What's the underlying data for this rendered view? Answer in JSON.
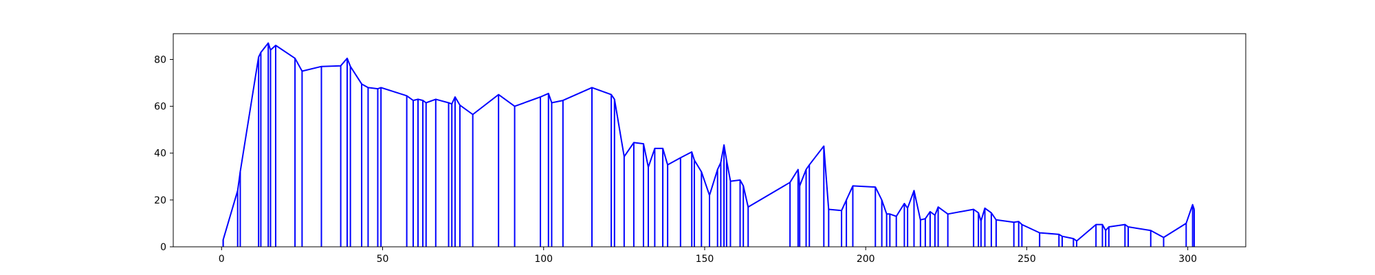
{
  "chart_data": {
    "type": "line",
    "title": "",
    "xlabel": "",
    "ylabel": "",
    "xlim": [
      -15,
      318
    ],
    "ylim": [
      0,
      91
    ],
    "xticks": [
      0,
      50,
      100,
      150,
      200,
      250,
      300
    ],
    "yticks": [
      0,
      20,
      40,
      60,
      80
    ],
    "grid": false,
    "legend": "none",
    "line_color": "#0000ff",
    "style": "each data point has a vertical stem from y=0 up to its value; consecutive points are joined by a line",
    "series": [
      {
        "points": [
          [
            0.5,
            0
          ],
          [
            0.5,
            3
          ],
          [
            5,
            24
          ],
          [
            5.8,
            32
          ],
          [
            11.5,
            81
          ],
          [
            12.2,
            83
          ],
          [
            14.5,
            87
          ],
          [
            15.2,
            84
          ],
          [
            16.8,
            86
          ],
          [
            22.8,
            80.5
          ],
          [
            25,
            75
          ],
          [
            31,
            77
          ],
          [
            37,
            77.3
          ],
          [
            39,
            80.5
          ],
          [
            40,
            77
          ],
          [
            43.5,
            69.5
          ],
          [
            45.5,
            68
          ],
          [
            48.5,
            67.5
          ],
          [
            49.5,
            68
          ],
          [
            57.5,
            64.5
          ],
          [
            59.5,
            62.5
          ],
          [
            61,
            63
          ],
          [
            62.5,
            62.5
          ],
          [
            63.5,
            61.5
          ],
          [
            66.5,
            63
          ],
          [
            70.5,
            61.5
          ],
          [
            71.5,
            61
          ],
          [
            72.5,
            64
          ],
          [
            74,
            60.5
          ],
          [
            78,
            56.5
          ],
          [
            86,
            65
          ],
          [
            91,
            60
          ],
          [
            99,
            64
          ],
          [
            101.5,
            65.5
          ],
          [
            102.5,
            61.5
          ],
          [
            106,
            62.5
          ],
          [
            115,
            68
          ],
          [
            121,
            65
          ],
          [
            122,
            63
          ],
          [
            125,
            38.5
          ],
          [
            128,
            44.5
          ],
          [
            131,
            44
          ],
          [
            132.5,
            34
          ],
          [
            134.5,
            42
          ],
          [
            137,
            42
          ],
          [
            138.5,
            35
          ],
          [
            142.5,
            38
          ],
          [
            146,
            40.5
          ],
          [
            146.8,
            37
          ],
          [
            149,
            32
          ],
          [
            151.5,
            22
          ],
          [
            154,
            33
          ],
          [
            155,
            36
          ],
          [
            156,
            43.5
          ],
          [
            156.8,
            37
          ],
          [
            158,
            28
          ],
          [
            161,
            28.5
          ],
          [
            162,
            26
          ],
          [
            163.5,
            17
          ],
          [
            176.5,
            27.5
          ],
          [
            179,
            33
          ],
          [
            179.5,
            26
          ],
          [
            181.5,
            33
          ],
          [
            182.5,
            35
          ],
          [
            187,
            43
          ],
          [
            188.5,
            16
          ],
          [
            192.5,
            15.5
          ],
          [
            194,
            20
          ],
          [
            196,
            26
          ],
          [
            203,
            25.5
          ],
          [
            205,
            20
          ],
          [
            206.5,
            14
          ],
          [
            207.5,
            14
          ],
          [
            209.5,
            13
          ],
          [
            212,
            18.5
          ],
          [
            213,
            16.5
          ],
          [
            215,
            24
          ],
          [
            217,
            11.5
          ],
          [
            218.5,
            12
          ],
          [
            220,
            15
          ],
          [
            221.5,
            13.5
          ],
          [
            222.5,
            17
          ],
          [
            225.5,
            14
          ],
          [
            233.5,
            16
          ],
          [
            235,
            14.5
          ],
          [
            235.8,
            11
          ],
          [
            237,
            16.5
          ],
          [
            239,
            14.5
          ],
          [
            240.5,
            11.5
          ],
          [
            246,
            10.5
          ],
          [
            247.5,
            10.8
          ],
          [
            248.5,
            9.5
          ],
          [
            254,
            6
          ],
          [
            260,
            5.3
          ],
          [
            261,
            4.5
          ],
          [
            264.5,
            3.5
          ],
          [
            265.5,
            2.5
          ],
          [
            271.5,
            9.5
          ],
          [
            273.5,
            9.5
          ],
          [
            274.5,
            7
          ],
          [
            275.5,
            8.5
          ],
          [
            280.5,
            9.5
          ],
          [
            281.5,
            8.5
          ],
          [
            288.5,
            7
          ],
          [
            292.5,
            4
          ],
          [
            299.5,
            10
          ],
          [
            301.5,
            18
          ],
          [
            302,
            16
          ]
        ]
      }
    ]
  }
}
